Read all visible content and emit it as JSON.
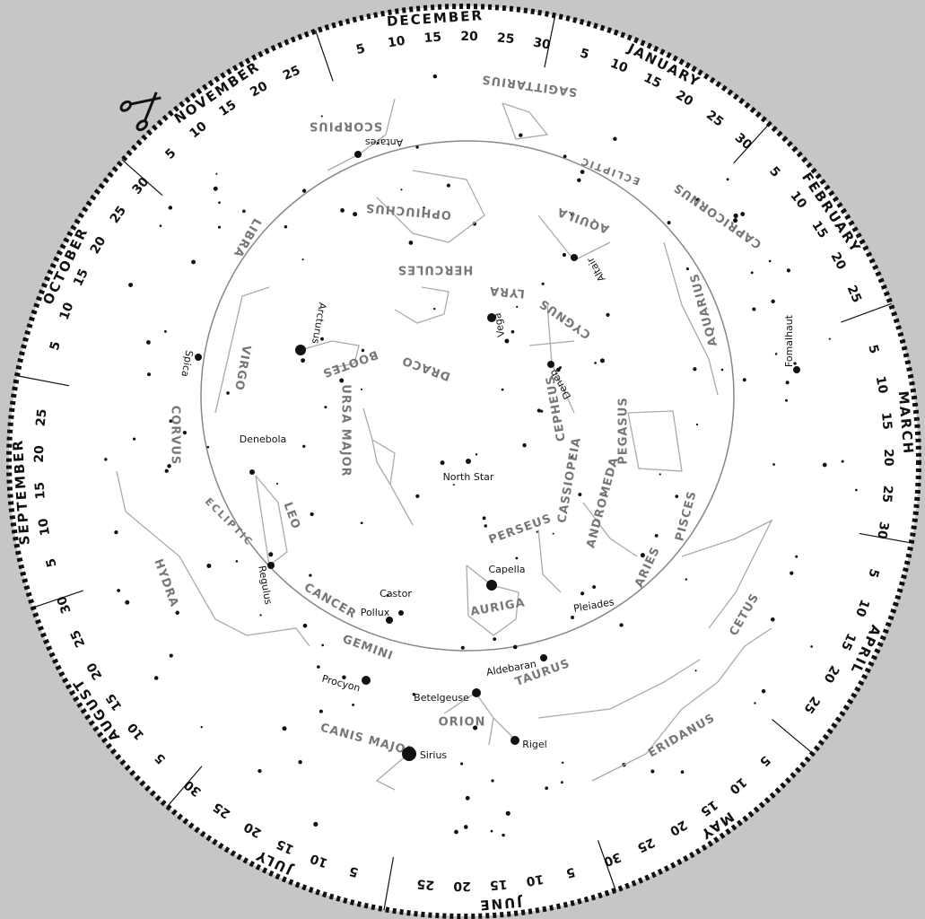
{
  "months": [
    {
      "name": "DECEMBER",
      "days": [
        5,
        10,
        15,
        20,
        25,
        30
      ]
    },
    {
      "name": "JANUARY",
      "days": [
        5,
        10,
        15,
        20,
        25,
        30
      ]
    },
    {
      "name": "FEBRUARY",
      "days": [
        5,
        10,
        15,
        20,
        25
      ]
    },
    {
      "name": "MARCH",
      "days": [
        5,
        10,
        15,
        20,
        25,
        30
      ]
    },
    {
      "name": "APRIL",
      "days": [
        5,
        10,
        15,
        20,
        25
      ]
    },
    {
      "name": "MAY",
      "days": [
        5,
        10,
        15,
        20,
        25,
        30
      ]
    },
    {
      "name": "JUNE",
      "days": [
        5,
        10,
        15,
        20,
        25
      ]
    },
    {
      "name": "JULY",
      "days": [
        5,
        10,
        15,
        20,
        25,
        30
      ]
    },
    {
      "name": "AUGUST",
      "days": [
        5,
        10,
        15,
        20,
        25,
        30
      ]
    },
    {
      "name": "SEPTEMBER",
      "days": [
        5,
        10,
        15,
        20,
        25
      ]
    },
    {
      "name": "OCTOBER",
      "days": [
        5,
        10,
        15,
        20,
        25,
        30
      ]
    },
    {
      "name": "NOVEMBER",
      "days": [
        5,
        10,
        15,
        20,
        25
      ]
    }
  ],
  "constellations": [
    "SAGITTARIUS",
    "SCORPIUS",
    "OPHIUCHUS",
    "HERCULES",
    "LYRA",
    "AQUILA",
    "CAPRICORNUS",
    "AQUARIUS",
    "CYGNUS",
    "LIBRA",
    "VIRGO",
    "BOOTES",
    "DRACO",
    "CEPHEUS",
    "URSA MAJOR",
    "CORVUS",
    "PEGASUS",
    "CASSIOPEIA",
    "ANDROMEDA",
    "PISCES",
    "LEO",
    "PERSEUS",
    "ARIES",
    "HYDRA",
    "CANCER",
    "AURIGA",
    "CETUS",
    "GEMINI",
    "TAURUS",
    "ORION",
    "ERIDANUS",
    "CANIS MAJOR"
  ],
  "ecliptic": [
    "ECLIPTIC",
    "ECLIPTIC"
  ],
  "stars": [
    "Antares",
    "Altair",
    "Vega",
    "Arcturus",
    "Fomalhaut",
    "Spica",
    "Deneb",
    "North Star",
    "Denebola",
    "Regulus",
    "Capella",
    "Castor",
    "Pollux",
    "Pleiades",
    "Procyon",
    "Aldebaran",
    "Betelgeuse",
    "Rigel",
    "Sirius"
  ]
}
